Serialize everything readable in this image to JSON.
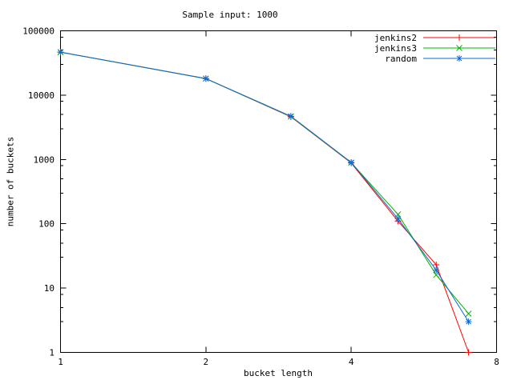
{
  "chart_data": {
    "type": "line",
    "title": "Sample input: 1000",
    "xlabel": "bucket length",
    "ylabel": "number of buckets",
    "x_scale": "log2",
    "y_scale": "log10",
    "xlim": [
      1,
      8
    ],
    "ylim": [
      1,
      100000
    ],
    "x_ticks": [
      1,
      2,
      4,
      8
    ],
    "y_ticks": [
      1,
      10,
      100,
      1000,
      10000,
      100000
    ],
    "y_minor_tick_multipliers": [
      3,
      5,
      8
    ],
    "x": [
      1,
      2,
      3,
      4,
      5,
      6,
      7
    ],
    "series": [
      {
        "name": "jenkins2",
        "color": "#ff0000",
        "marker": "plus",
        "values": [
          46500,
          18050,
          4600,
          880,
          110,
          23,
          1
        ]
      },
      {
        "name": "jenkins3",
        "color": "#00b400",
        "marker": "x",
        "values": [
          46500,
          18050,
          4650,
          890,
          140,
          16,
          4
        ]
      },
      {
        "name": "random",
        "color": "#0e6ad8",
        "marker": "asterisk",
        "values": [
          46600,
          18100,
          4700,
          900,
          120,
          19,
          3
        ]
      }
    ],
    "legend": {
      "position": "top-right-inside",
      "entries": [
        "jenkins2",
        "jenkins3",
        "random"
      ]
    },
    "background": "#ffffff",
    "axis_color": "#000000"
  }
}
